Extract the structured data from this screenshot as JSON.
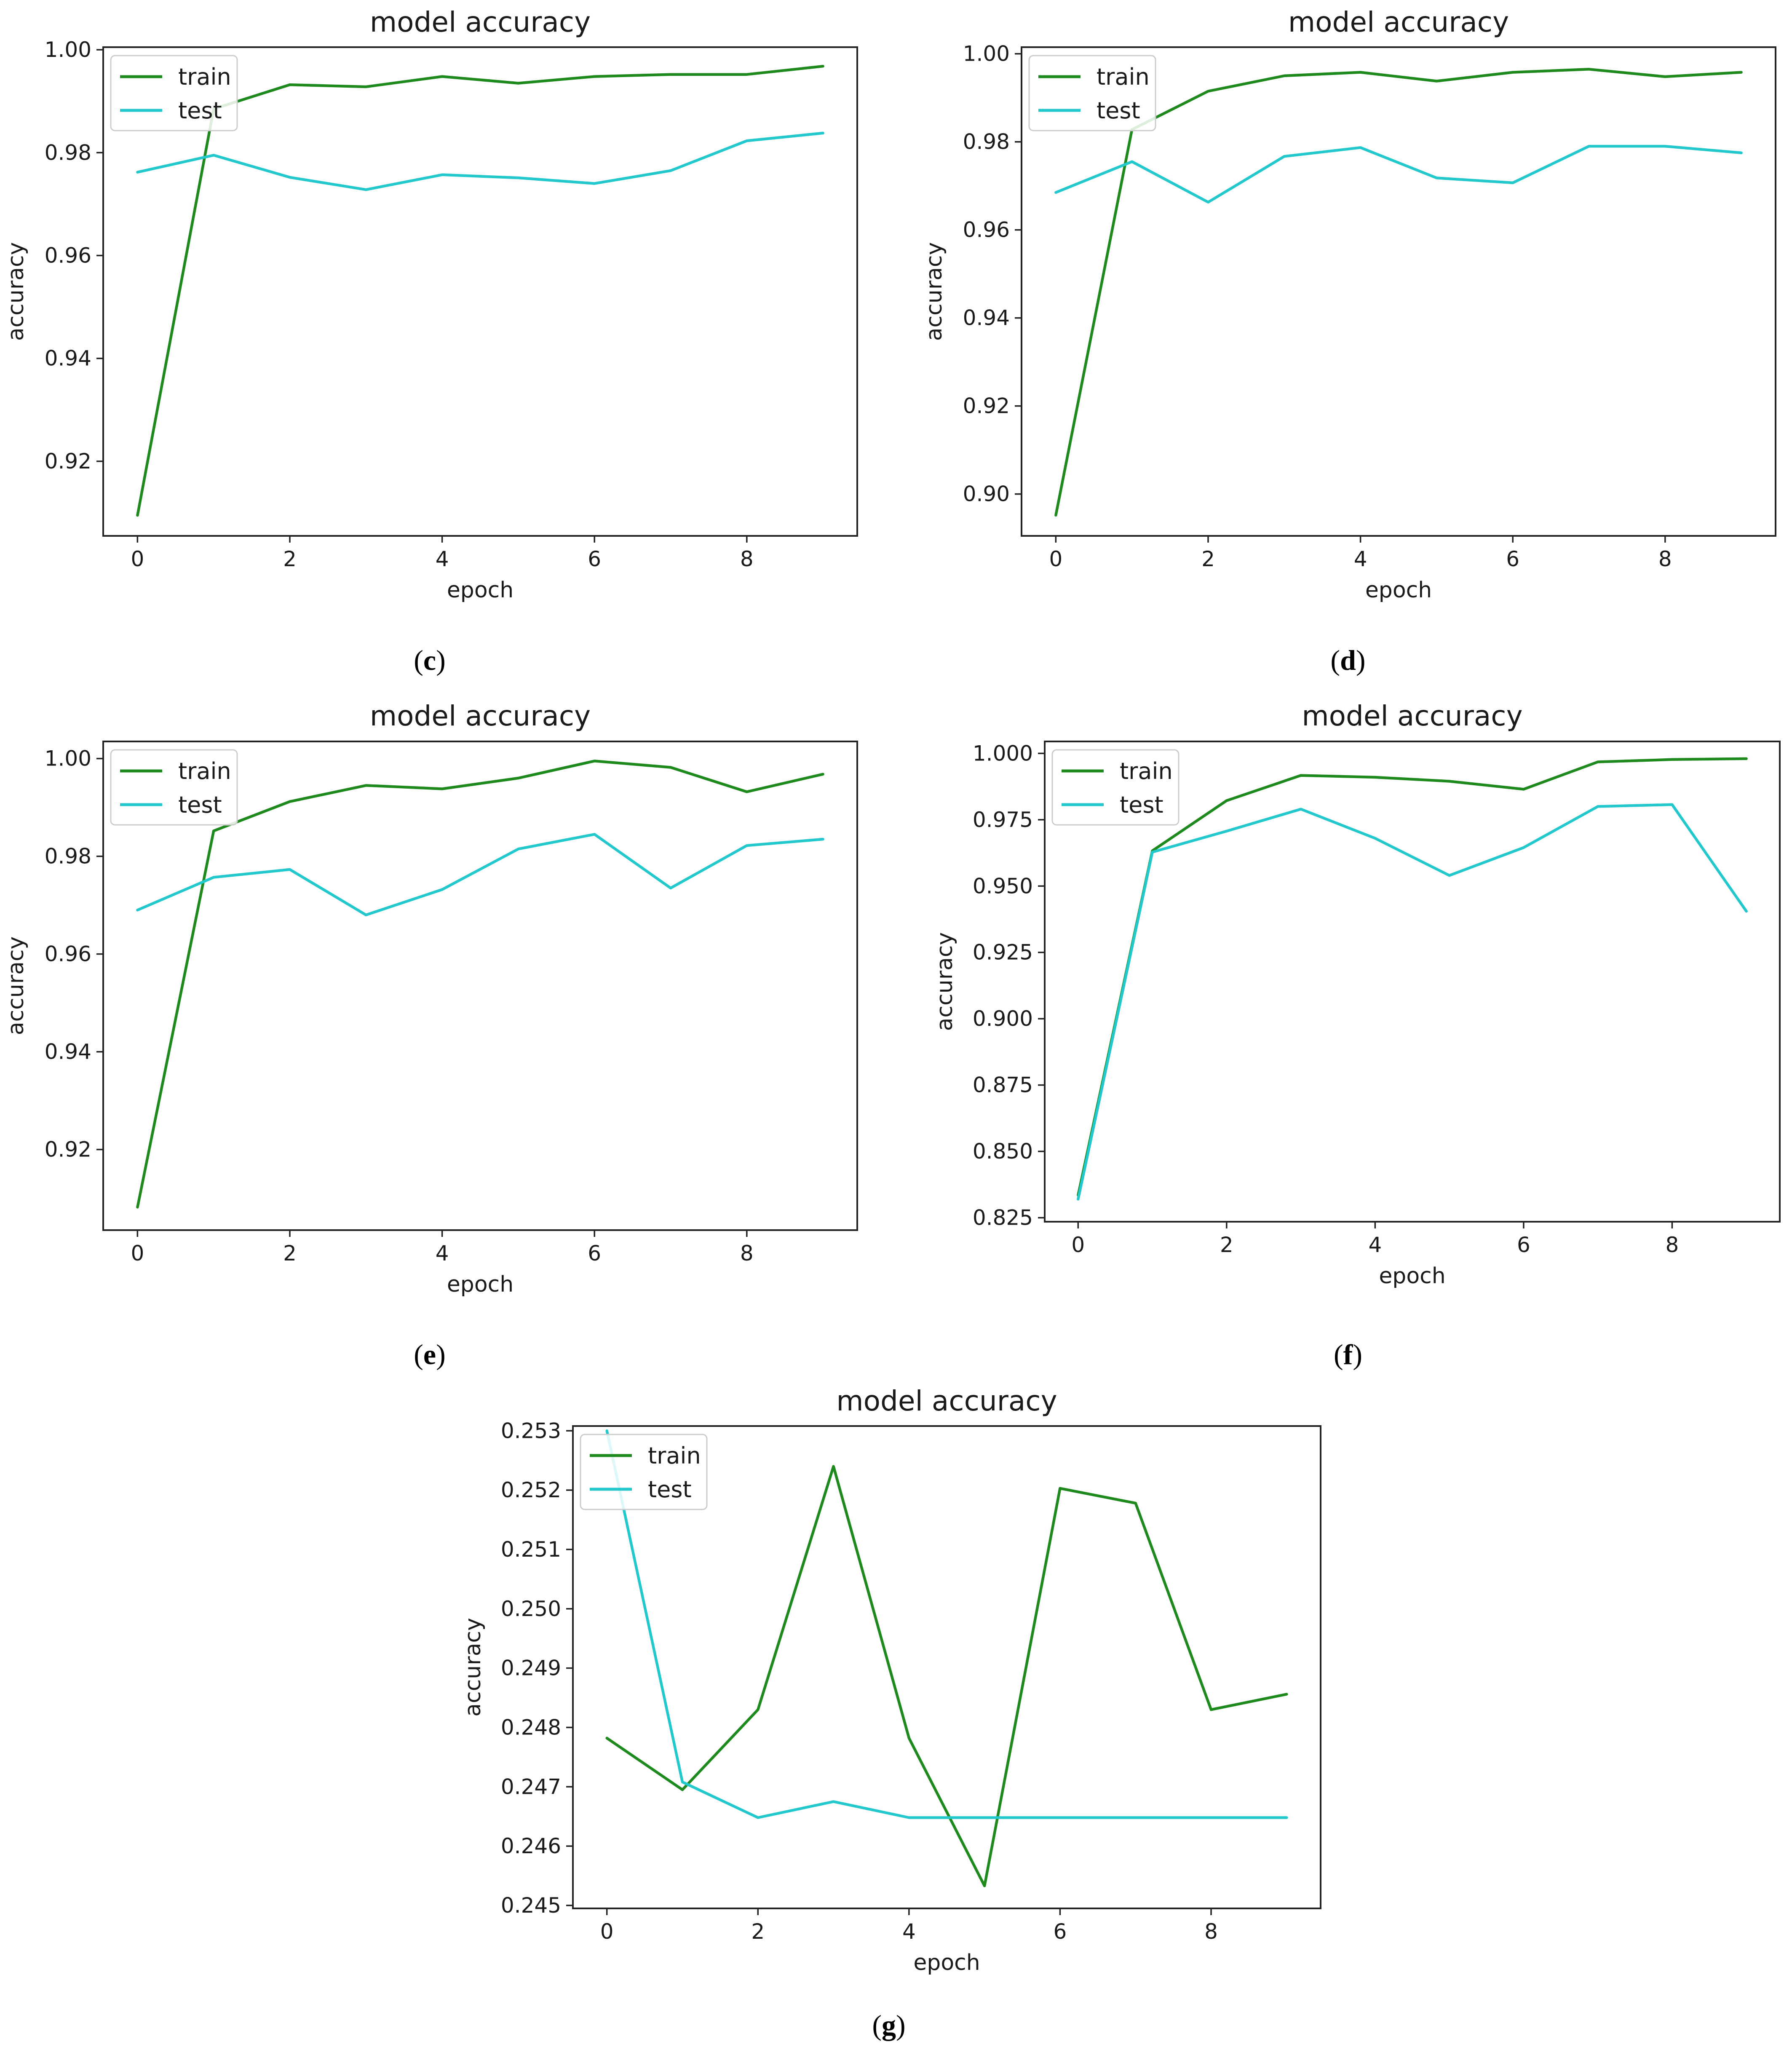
{
  "figure": {
    "colors": {
      "train": "#1e8a1e",
      "test": "#22c8cc"
    }
  },
  "chart_data": [
    {
      "panel": "c",
      "type": "line",
      "title": "model accuracy",
      "xlabel": "epoch",
      "ylabel": "accuracy",
      "caption_letter": "c",
      "xlim": [
        -0.45,
        9.45
      ],
      "ylim": [
        0.9055,
        1.0005
      ],
      "xticks": [
        0,
        2,
        4,
        6,
        8
      ],
      "xtick_labels": [
        "0",
        "2",
        "4",
        "6",
        "8"
      ],
      "yticks": [
        0.92,
        0.94,
        0.96,
        0.98,
        1.0
      ],
      "ytick_labels": [
        "0.92",
        "0.94",
        "0.96",
        "0.98",
        "1.00"
      ],
      "legend": {
        "location": "upper left"
      },
      "x": [
        0,
        1,
        2,
        3,
        4,
        5,
        6,
        7,
        8,
        9
      ],
      "series": [
        {
          "name": "train",
          "color": "#1e8a1e",
          "values": [
            0.9095,
            0.9885,
            0.9932,
            0.9928,
            0.9948,
            0.9935,
            0.9948,
            0.9952,
            0.9952,
            0.9968
          ]
        },
        {
          "name": "test",
          "color": "#22c8cc",
          "values": [
            0.9762,
            0.9795,
            0.9752,
            0.9728,
            0.9757,
            0.9751,
            0.974,
            0.9765,
            0.9823,
            0.9838
          ]
        }
      ]
    },
    {
      "panel": "d",
      "type": "line",
      "title": "model accuracy",
      "xlabel": "epoch",
      "ylabel": "accuracy",
      "caption_letter": "d",
      "xlim": [
        -0.45,
        9.45
      ],
      "ylim": [
        0.8905,
        1.0015
      ],
      "xticks": [
        0,
        2,
        4,
        6,
        8
      ],
      "xtick_labels": [
        "0",
        "2",
        "4",
        "6",
        "8"
      ],
      "yticks": [
        0.9,
        0.92,
        0.94,
        0.96,
        0.98,
        1.0
      ],
      "ytick_labels": [
        "0.90",
        "0.92",
        "0.94",
        "0.96",
        "0.98",
        "1.00"
      ],
      "legend": {
        "location": "upper left"
      },
      "x": [
        0,
        1,
        2,
        3,
        4,
        5,
        6,
        7,
        8,
        9
      ],
      "series": [
        {
          "name": "train",
          "color": "#1e8a1e",
          "values": [
            0.8952,
            0.9828,
            0.9915,
            0.995,
            0.9958,
            0.9938,
            0.9958,
            0.9965,
            0.9948,
            0.9958
          ]
        },
        {
          "name": "test",
          "color": "#22c8cc",
          "values": [
            0.9685,
            0.9755,
            0.9663,
            0.9767,
            0.9787,
            0.9718,
            0.9707,
            0.979,
            0.979,
            0.9775
          ]
        }
      ]
    },
    {
      "panel": "e",
      "type": "line",
      "title": "model accuracy",
      "xlabel": "epoch",
      "ylabel": "accuracy",
      "caption_letter": "e",
      "xlim": [
        -0.45,
        9.45
      ],
      "ylim": [
        0.9035,
        1.0035
      ],
      "xticks": [
        0,
        2,
        4,
        6,
        8
      ],
      "xtick_labels": [
        "0",
        "2",
        "4",
        "6",
        "8"
      ],
      "yticks": [
        0.92,
        0.94,
        0.96,
        0.98,
        1.0
      ],
      "ytick_labels": [
        "0.92",
        "0.94",
        "0.96",
        "0.98",
        "1.00"
      ],
      "legend": {
        "location": "upper left"
      },
      "x": [
        0,
        1,
        2,
        3,
        4,
        5,
        6,
        7,
        8,
        9
      ],
      "series": [
        {
          "name": "train",
          "color": "#1e8a1e",
          "values": [
            0.9082,
            0.9852,
            0.9912,
            0.9945,
            0.9938,
            0.996,
            0.9995,
            0.9982,
            0.9932,
            0.9968
          ]
        },
        {
          "name": "test",
          "color": "#22c8cc",
          "values": [
            0.969,
            0.9757,
            0.9773,
            0.968,
            0.9732,
            0.9815,
            0.9845,
            0.9735,
            0.9822,
            0.9835
          ]
        }
      ]
    },
    {
      "panel": "f",
      "type": "line",
      "title": "model accuracy",
      "xlabel": "epoch",
      "ylabel": "accuracy",
      "caption_letter": "f",
      "xlim": [
        -0.45,
        9.45
      ],
      "ylim": [
        0.8235,
        1.0045
      ],
      "xticks": [
        0,
        2,
        4,
        6,
        8
      ],
      "xtick_labels": [
        "0",
        "2",
        "4",
        "6",
        "8"
      ],
      "yticks": [
        0.825,
        0.85,
        0.875,
        0.9,
        0.925,
        0.95,
        0.975,
        1.0
      ],
      "ytick_labels": [
        "0.825",
        "0.850",
        "0.875",
        "0.900",
        "0.925",
        "0.950",
        "0.975",
        "1.000"
      ],
      "legend": {
        "location": "upper left"
      },
      "x": [
        0,
        1,
        2,
        3,
        4,
        5,
        6,
        7,
        8,
        9
      ],
      "series": [
        {
          "name": "train",
          "color": "#1e8a1e",
          "values": [
            0.8335,
            0.9633,
            0.9822,
            0.9917,
            0.991,
            0.9895,
            0.9865,
            0.9968,
            0.9977,
            0.998
          ]
        },
        {
          "name": "test",
          "color": "#22c8cc",
          "values": [
            0.832,
            0.9628,
            0.9707,
            0.979,
            0.968,
            0.954,
            0.9645,
            0.98,
            0.9807,
            0.9405
          ]
        }
      ]
    },
    {
      "panel": "g",
      "type": "line",
      "title": "model accuracy",
      "xlabel": "epoch",
      "ylabel": "accuracy",
      "caption_letter": "g",
      "xlim": [
        -0.45,
        9.45
      ],
      "ylim": [
        0.24495,
        0.25308
      ],
      "xticks": [
        0,
        2,
        4,
        6,
        8
      ],
      "xtick_labels": [
        "0",
        "2",
        "4",
        "6",
        "8"
      ],
      "yticks": [
        0.245,
        0.246,
        0.247,
        0.248,
        0.249,
        0.25,
        0.251,
        0.252,
        0.253
      ],
      "ytick_labels": [
        "0.245",
        "0.246",
        "0.247",
        "0.248",
        "0.249",
        "0.250",
        "0.251",
        "0.252",
        "0.253"
      ],
      "legend": {
        "location": "upper left"
      },
      "x": [
        0,
        1,
        2,
        3,
        4,
        5,
        6,
        7,
        8,
        9
      ],
      "series": [
        {
          "name": "train",
          "color": "#1e8a1e",
          "values": [
            0.24782,
            0.24695,
            0.2483,
            0.2524,
            0.24782,
            0.24533,
            0.25203,
            0.25178,
            0.2483,
            0.24856
          ]
        },
        {
          "name": "test",
          "color": "#22c8cc",
          "values": [
            0.253,
            0.24708,
            0.24648,
            0.24675,
            0.24648,
            0.24648,
            0.24648,
            0.24648,
            0.24648,
            0.24648
          ]
        }
      ]
    }
  ]
}
